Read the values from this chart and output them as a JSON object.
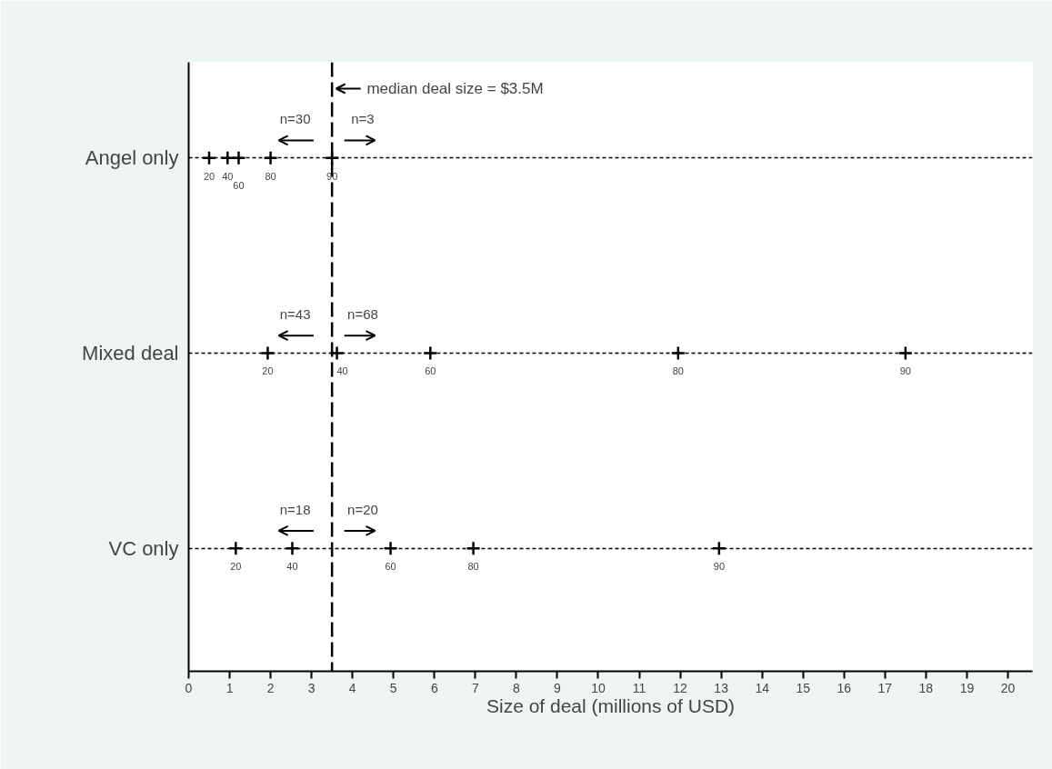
{
  "chart_data": {
    "type": "scatter",
    "orientation": "horizontal",
    "xlabel": "Size of deal (millions of USD)",
    "categories": [
      "Angel only",
      "Mixed deal",
      "VC only"
    ],
    "series": [
      {
        "name": "20",
        "color": "#000000",
        "values": [
          0.5,
          1.93,
          1.15
        ]
      },
      {
        "name": "40",
        "color": "#000000",
        "values": [
          0.95,
          3.62,
          2.53
        ]
      },
      {
        "name": "60",
        "color": "#000000",
        "values": [
          1.22,
          5.9,
          4.93
        ]
      },
      {
        "name": "80",
        "color": "#000000",
        "values": [
          2.0,
          11.95,
          6.95
        ]
      },
      {
        "name": "90",
        "color": "#000000",
        "values": [
          3.5,
          17.5,
          12.95
        ]
      }
    ],
    "xlim": [
      0,
      20.6
    ],
    "xticks": [
      0,
      1,
      2,
      3,
      4,
      5,
      6,
      7,
      8,
      9,
      10,
      11,
      12,
      13,
      14,
      15,
      16,
      17,
      18,
      19,
      20
    ],
    "marker": "cross",
    "grid": "y",
    "ref_lines": [
      {
        "axis": "x",
        "value": 3.5,
        "label": "median deal size = $3.5M",
        "color": "#000000",
        "line_style": "dashed"
      }
    ],
    "annotations": [
      "n=30",
      "n=3",
      "n=43",
      "n=68",
      "n=18",
      "n=20"
    ]
  }
}
